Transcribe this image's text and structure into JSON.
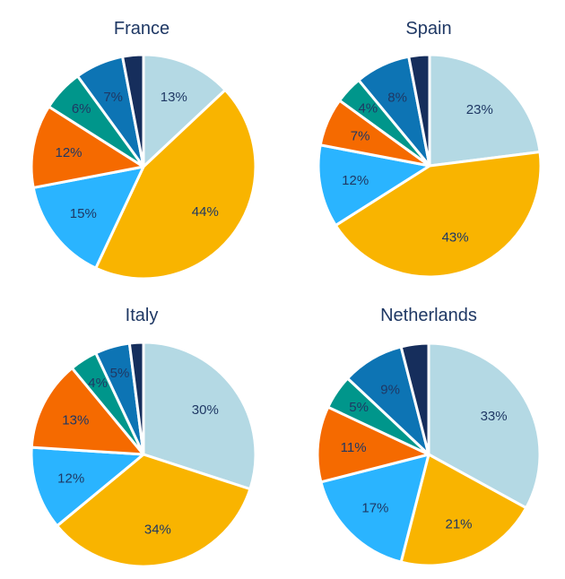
{
  "colors": {
    "light_blue": "#b4d9e4",
    "yellow": "#f9b400",
    "sky_blue": "#2ab4ff",
    "orange": "#f56a00",
    "teal": "#00968b",
    "blue": "#0d74b4",
    "navy": "#162e5c",
    "label_text": "#1f3864"
  },
  "chart_data": [
    {
      "type": "pie",
      "title": "France",
      "slices": [
        {
          "value": 13,
          "label": "13%",
          "color": "#b4d9e4"
        },
        {
          "value": 44,
          "label": "44%",
          "color": "#f9b400"
        },
        {
          "value": 15,
          "label": "15%",
          "color": "#2ab4ff"
        },
        {
          "value": 12,
          "label": "12%",
          "color": "#f56a00"
        },
        {
          "value": 6,
          "label": "6%",
          "color": "#00968b"
        },
        {
          "value": 7,
          "label": "7%",
          "color": "#0d74b4"
        },
        {
          "value": 3,
          "label": "",
          "color": "#162e5c"
        }
      ]
    },
    {
      "type": "pie",
      "title": "Spain",
      "slices": [
        {
          "value": 23,
          "label": "23%",
          "color": "#b4d9e4"
        },
        {
          "value": 43,
          "label": "43%",
          "color": "#f9b400"
        },
        {
          "value": 12,
          "label": "12%",
          "color": "#2ab4ff"
        },
        {
          "value": 7,
          "label": "7%",
          "color": "#f56a00"
        },
        {
          "value": 4,
          "label": "4%",
          "color": "#00968b"
        },
        {
          "value": 8,
          "label": "8%",
          "color": "#0d74b4"
        },
        {
          "value": 3,
          "label": "",
          "color": "#162e5c"
        }
      ]
    },
    {
      "type": "pie",
      "title": "Italy",
      "slices": [
        {
          "value": 30,
          "label": "30%",
          "color": "#b4d9e4"
        },
        {
          "value": 34,
          "label": "34%",
          "color": "#f9b400"
        },
        {
          "value": 12,
          "label": "12%",
          "color": "#2ab4ff"
        },
        {
          "value": 13,
          "label": "13%",
          "color": "#f56a00"
        },
        {
          "value": 4,
          "label": "4%",
          "color": "#00968b"
        },
        {
          "value": 5,
          "label": "5%",
          "color": "#0d74b4"
        },
        {
          "value": 2,
          "label": "",
          "color": "#162e5c"
        }
      ]
    },
    {
      "type": "pie",
      "title": "Netherlands",
      "slices": [
        {
          "value": 33,
          "label": "33%",
          "color": "#b4d9e4"
        },
        {
          "value": 21,
          "label": "21%",
          "color": "#f9b400"
        },
        {
          "value": 17,
          "label": "17%",
          "color": "#2ab4ff"
        },
        {
          "value": 11,
          "label": "11%",
          "color": "#f56a00"
        },
        {
          "value": 5,
          "label": "5%",
          "color": "#00968b"
        },
        {
          "value": 9,
          "label": "9%",
          "color": "#0d74b4"
        },
        {
          "value": 4,
          "label": "",
          "color": "#162e5c"
        }
      ]
    }
  ]
}
